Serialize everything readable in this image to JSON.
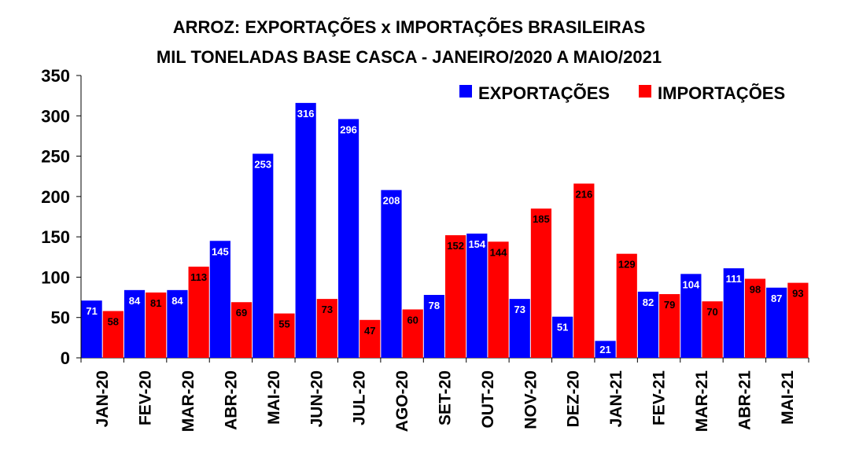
{
  "chart_data": {
    "type": "bar",
    "title": "ARROZ: EXPORTAÇÕES x IMPORTAÇÕES BRASILEIRAS",
    "subtitle": "MIL TONELADAS BASE CASCA - JANEIRO/2020 A MAIO/2021",
    "xlabel": "",
    "ylabel": "",
    "ylim": [
      0,
      350
    ],
    "yticks": [
      0,
      50,
      100,
      150,
      200,
      250,
      300,
      350
    ],
    "grid": false,
    "legend_position": "top-right",
    "categories": [
      "JAN-20",
      "FEV-20",
      "MAR-20",
      "ABR-20",
      "MAI-20",
      "JUN-20",
      "JUL-20",
      "AGO-20",
      "SET-20",
      "OUT-20",
      "NOV-20",
      "DEZ-20",
      "JAN-21",
      "FEV-21",
      "MAR-21",
      "ABR-21",
      "MAI-21"
    ],
    "series": [
      {
        "name": "EXPORTAÇÕES",
        "color": "#0000ff",
        "label_color": "#ffffff",
        "values": [
          71,
          84,
          84,
          145,
          253,
          316,
          296,
          208,
          78,
          154,
          73,
          51,
          21,
          82,
          104,
          111,
          87
        ]
      },
      {
        "name": "IMPORTAÇÕES",
        "color": "#ff0000",
        "label_color": "#000000",
        "values": [
          58,
          81,
          113,
          69,
          55,
          73,
          47,
          60,
          152,
          144,
          185,
          216,
          129,
          79,
          70,
          98,
          93
        ]
      }
    ]
  }
}
